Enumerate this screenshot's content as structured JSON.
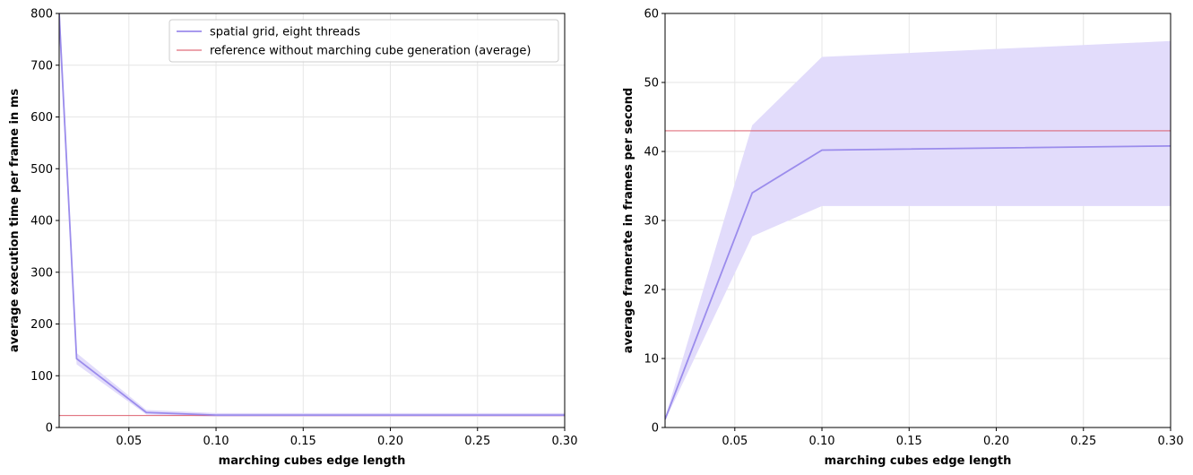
{
  "chart_data": [
    {
      "type": "line",
      "xlabel": "marching cubes edge length",
      "ylabel": "average execution time per frame in ms",
      "xlim": [
        0.01,
        0.3
      ],
      "ylim": [
        0,
        800
      ],
      "xticks": [
        "0.05",
        "0.10",
        "0.15",
        "0.20",
        "0.25",
        "0.30"
      ],
      "yticks": [
        "0",
        "100",
        "200",
        "300",
        "400",
        "500",
        "600",
        "700",
        "800"
      ],
      "grid": true,
      "legend": {
        "placement": "top-center",
        "entries": [
          {
            "label": "spatial grid, eight threads",
            "color": "#9b8cec"
          },
          {
            "label": "reference without marching cube generation (average)",
            "color": "#d94a5a"
          }
        ]
      },
      "series": [
        {
          "name": "spatial grid, eight threads",
          "color": "#9b8cec",
          "band_color": "#e2dcfb",
          "x": [
            0.01,
            0.02,
            0.06,
            0.1,
            0.3
          ],
          "y": [
            800,
            133,
            29,
            24,
            24
          ],
          "y_low": [
            760,
            122,
            25,
            21,
            21
          ],
          "y_high": [
            830,
            144,
            34,
            28,
            28
          ]
        }
      ],
      "reference_line": {
        "y": 23,
        "color": "#d94a5a"
      }
    },
    {
      "type": "line",
      "xlabel": "marching cubes edge length",
      "ylabel": "average framerate in frames per second",
      "xlim": [
        0.01,
        0.3
      ],
      "ylim": [
        0,
        60
      ],
      "xticks": [
        "0.05",
        "0.10",
        "0.15",
        "0.20",
        "0.25",
        "0.30"
      ],
      "yticks": [
        "0",
        "10",
        "20",
        "30",
        "40",
        "50",
        "60"
      ],
      "grid": true,
      "series": [
        {
          "name": "spatial grid, eight threads",
          "color": "#9b8cec",
          "band_color": "#e2dcfb",
          "x": [
            0.01,
            0.06,
            0.1,
            0.3
          ],
          "y": [
            1.2,
            34,
            40.2,
            40.8
          ],
          "y_low": [
            1.0,
            27.7,
            32.1,
            32.1
          ],
          "y_high": [
            1.4,
            43.8,
            53.7,
            56
          ]
        }
      ],
      "reference_line": {
        "y": 43,
        "color": "#d94a5a"
      }
    }
  ]
}
